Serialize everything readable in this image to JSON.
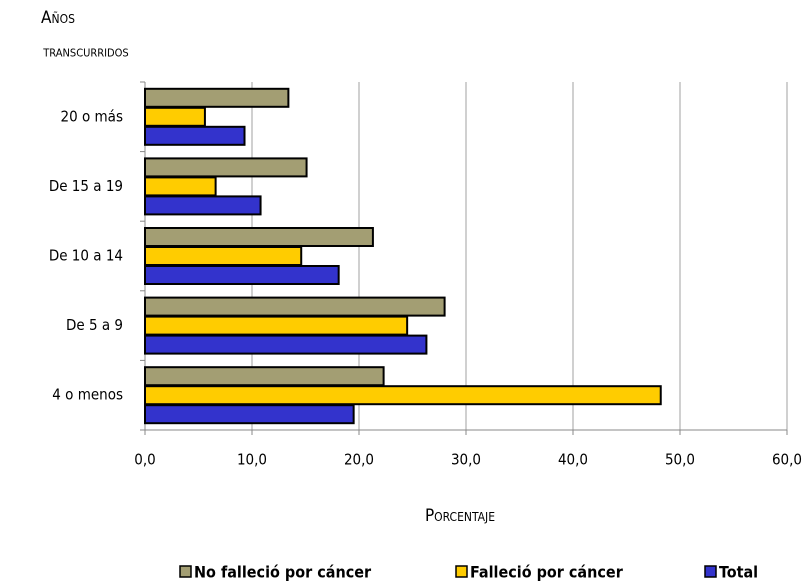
{
  "chart_data": {
    "type": "barh",
    "y_label": [
      "Años",
      "transcurridos"
    ],
    "x_label": "Porcentaje",
    "categories": [
      "20 o más",
      "De 15 a 19",
      "De 10 a 14",
      "De 5 a 9",
      "4 o menos"
    ],
    "series": [
      {
        "name": "No falleció por cáncer",
        "color": "#a39e73",
        "values": [
          13.4,
          15.1,
          21.3,
          28.0,
          22.3
        ]
      },
      {
        "name": "Falleció por cáncer",
        "color": "#ffcc00",
        "values": [
          5.6,
          6.6,
          14.6,
          24.5,
          48.2
        ]
      },
      {
        "name": "Total",
        "color": "#3333cc",
        "values": [
          9.3,
          10.8,
          18.1,
          26.3,
          19.5
        ]
      }
    ],
    "xlim": [
      0,
      60
    ],
    "xticks": [
      {
        "value": 0,
        "label": "0,0"
      },
      {
        "value": 10,
        "label": "10,0"
      },
      {
        "value": 20,
        "label": "20,0"
      },
      {
        "value": 30,
        "label": "30,0"
      },
      {
        "value": 40,
        "label": "40,0"
      },
      {
        "value": 50,
        "label": "50,0"
      },
      {
        "value": 60,
        "label": "60,0"
      }
    ],
    "grid": true,
    "legend": "bottom"
  }
}
